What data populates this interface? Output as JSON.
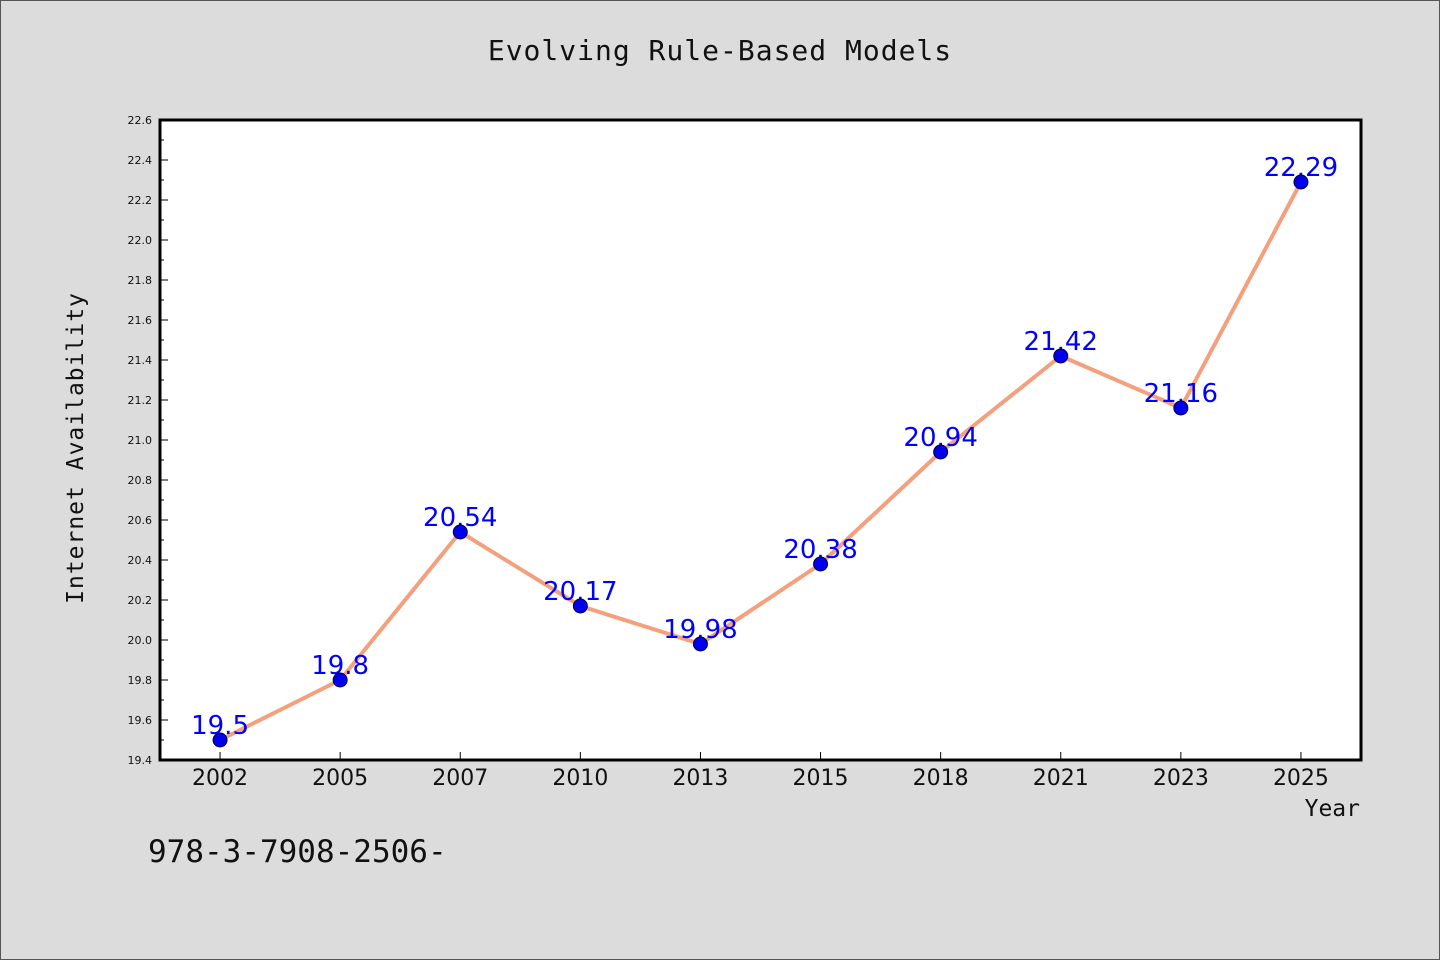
{
  "chart_data": {
    "type": "line",
    "title": "Evolving Rule-Based Models",
    "xlabel": "Year",
    "ylabel": "Internet Availability",
    "categories": [
      "2002",
      "2005",
      "2007",
      "2010",
      "2013",
      "2015",
      "2018",
      "2021",
      "2023",
      "2025"
    ],
    "series": [
      {
        "values": [
          19.5,
          19.8,
          20.54,
          20.17,
          19.98,
          20.38,
          20.94,
          21.42,
          21.16,
          22.29
        ],
        "data_labels": [
          "19.5",
          "19.8",
          "20.54",
          "20.17",
          "19.98",
          "20.38",
          "20.94",
          "21.42",
          "21.16",
          "22.29"
        ],
        "line_color": "#f4a07e",
        "marker_color": "#0000ee",
        "label_color": "#0000ff"
      }
    ],
    "ylim": [
      19.4,
      22.6
    ],
    "yticks": [
      "19.4",
      "19.6",
      "19.8",
      "20.0",
      "20.2",
      "20.4",
      "20.6",
      "20.8",
      "21.0",
      "21.2",
      "21.4",
      "21.6",
      "21.8",
      "22.0",
      "22.2",
      "22.4",
      "22.6"
    ],
    "grid": false,
    "legend": "none"
  },
  "footer": {
    "text": "978-3-7908-2506-"
  },
  "colors": {
    "background": "#dcdcdc",
    "plot_background": "#ffffff",
    "axis": "#000000"
  }
}
